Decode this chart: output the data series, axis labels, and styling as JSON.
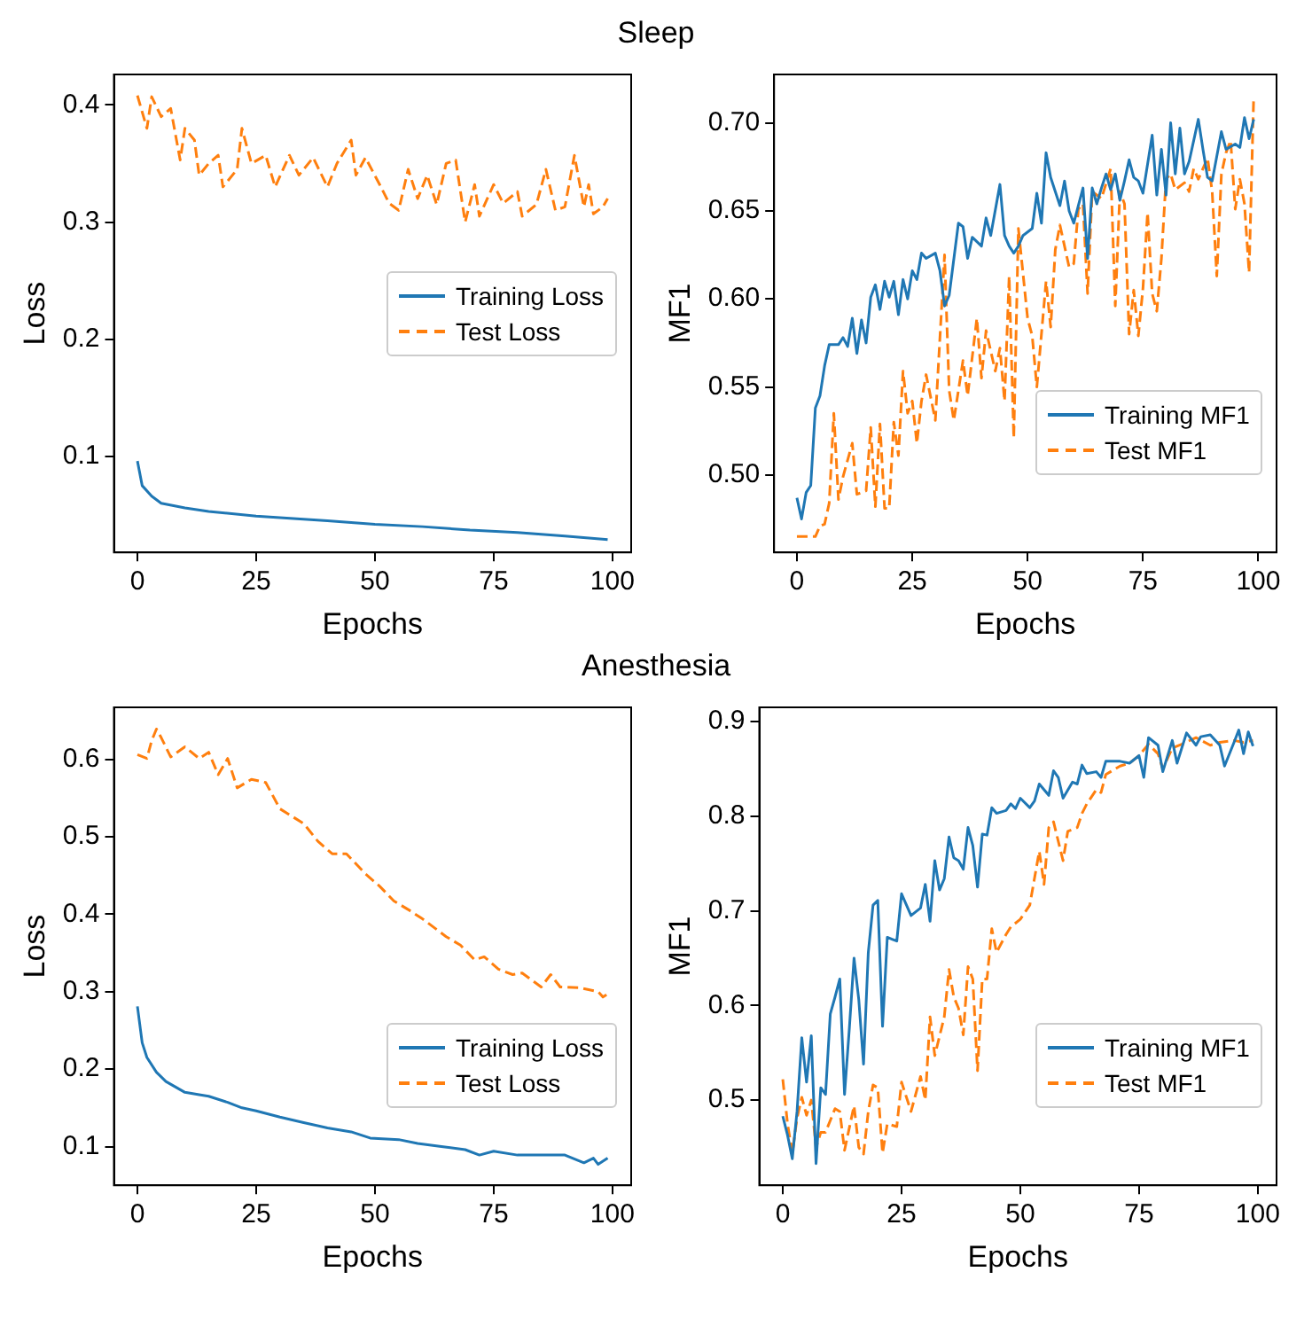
{
  "chart_data": [
    {
      "type": "line",
      "title": "Sleep",
      "xlabel": "Epochs",
      "ylabel": "Loss",
      "xlim": [
        -4.95,
        103.95
      ],
      "xticks": [
        0,
        25,
        50,
        75,
        100
      ],
      "ylim": [
        0.018,
        0.426
      ],
      "yticks": [
        0.1,
        0.2,
        0.3,
        0.4
      ],
      "legend": "center right",
      "grid": false,
      "series": [
        {
          "name": "Training Loss",
          "color": "#1f77b4",
          "line_style": "solid",
          "x": [
            0,
            1,
            3,
            5,
            10,
            15,
            25,
            40,
            50,
            60,
            70,
            80,
            90,
            99
          ],
          "values": [
            0.096,
            0.075,
            0.066,
            0.06,
            0.056,
            0.053,
            0.049,
            0.045,
            0.042,
            0.04,
            0.037,
            0.035,
            0.032,
            0.029
          ]
        },
        {
          "name": "Test Loss",
          "color": "#ff7f0e",
          "line_style": "dashed",
          "x": [
            0,
            2,
            3,
            5,
            7,
            8,
            9,
            10,
            12,
            13,
            15,
            17,
            18,
            21,
            22,
            24,
            27,
            29,
            32,
            34,
            37,
            40,
            42,
            45,
            46,
            48,
            51,
            53,
            55,
            57,
            59,
            61,
            63,
            65,
            67,
            69,
            71,
            72,
            75,
            77,
            80,
            81,
            84,
            86,
            88,
            90,
            92,
            94,
            95,
            96,
            98,
            99
          ],
          "values": [
            0.408,
            0.38,
            0.407,
            0.39,
            0.397,
            0.375,
            0.353,
            0.38,
            0.37,
            0.34,
            0.35,
            0.357,
            0.33,
            0.345,
            0.38,
            0.35,
            0.357,
            0.33,
            0.357,
            0.34,
            0.355,
            0.33,
            0.35,
            0.37,
            0.34,
            0.355,
            0.332,
            0.316,
            0.31,
            0.345,
            0.32,
            0.34,
            0.315,
            0.35,
            0.353,
            0.3,
            0.332,
            0.305,
            0.332,
            0.316,
            0.326,
            0.305,
            0.315,
            0.345,
            0.31,
            0.313,
            0.357,
            0.313,
            0.332,
            0.307,
            0.313,
            0.32
          ]
        }
      ]
    },
    {
      "type": "line",
      "xlabel": "Epochs",
      "ylabel": "MF1",
      "xlim": [
        -4.95,
        103.95
      ],
      "xticks": [
        0,
        25,
        50,
        75,
        100
      ],
      "ylim": [
        0.456,
        0.7275
      ],
      "yticks": [
        {
          "value": 0.5,
          "label": "0.50"
        },
        {
          "value": 0.55,
          "label": "0.55"
        },
        {
          "value": 0.6,
          "label": "0.60"
        },
        {
          "value": 0.65,
          "label": "0.65"
        },
        {
          "value": 0.7,
          "label": "0.70"
        }
      ],
      "legend": "lower right",
      "grid": false,
      "series": [
        {
          "name": "Training MF1",
          "color": "#1f77b4",
          "line_style": "solid",
          "x": [
            0,
            1,
            2,
            3,
            4,
            5,
            6,
            7,
            9,
            10,
            11,
            12,
            13,
            14,
            15,
            16,
            17,
            18,
            19,
            20,
            21,
            22,
            23,
            24,
            25,
            26,
            27,
            28,
            30,
            31,
            32,
            33,
            35,
            36,
            37,
            38,
            40,
            41,
            42,
            44,
            45,
            46,
            47,
            48,
            49,
            51,
            52,
            53,
            54,
            55,
            57,
            58,
            59,
            60,
            61,
            62,
            63,
            64,
            65,
            66,
            67,
            68,
            69,
            70,
            71,
            72,
            73,
            74,
            75,
            77,
            78,
            79,
            80,
            81,
            82,
            83,
            84,
            85,
            87,
            88,
            89,
            90,
            92,
            93,
            95,
            96,
            97,
            98,
            99
          ],
          "values": [
            0.487,
            0.475,
            0.49,
            0.494,
            0.538,
            0.545,
            0.562,
            0.574,
            0.574,
            0.578,
            0.573,
            0.589,
            0.569,
            0.588,
            0.575,
            0.601,
            0.608,
            0.594,
            0.61,
            0.601,
            0.61,
            0.591,
            0.611,
            0.6,
            0.616,
            0.611,
            0.626,
            0.623,
            0.626,
            0.616,
            0.596,
            0.602,
            0.643,
            0.641,
            0.623,
            0.635,
            0.63,
            0.646,
            0.636,
            0.665,
            0.636,
            0.63,
            0.626,
            0.63,
            0.636,
            0.64,
            0.66,
            0.643,
            0.683,
            0.669,
            0.653,
            0.667,
            0.65,
            0.643,
            0.653,
            0.663,
            0.623,
            0.663,
            0.654,
            0.663,
            0.671,
            0.662,
            0.671,
            0.656,
            0.667,
            0.679,
            0.669,
            0.667,
            0.66,
            0.693,
            0.659,
            0.685,
            0.659,
            0.7,
            0.671,
            0.697,
            0.671,
            0.678,
            0.702,
            0.685,
            0.669,
            0.667,
            0.695,
            0.685,
            0.688,
            0.686,
            0.703,
            0.691,
            0.702
          ]
        },
        {
          "name": "Test MF1",
          "color": "#ff7f0e",
          "line_style": "dashed",
          "x": [
            0,
            4,
            5,
            6,
            7,
            8,
            9,
            10,
            12,
            13,
            15,
            16,
            17,
            18,
            19,
            20,
            21,
            22,
            23,
            24,
            25,
            26,
            27,
            28,
            30,
            32,
            33,
            34,
            36,
            37,
            39,
            40,
            41,
            43,
            44,
            45,
            46,
            47,
            48,
            50,
            51,
            52,
            54,
            55,
            56,
            57,
            59,
            60,
            61,
            62,
            63,
            64,
            66,
            68,
            69,
            70,
            71,
            72,
            73,
            74,
            75,
            76,
            77,
            78,
            79,
            80,
            81,
            82,
            84,
            85,
            86,
            87,
            89,
            90,
            91,
            92,
            93,
            94,
            95,
            96,
            97,
            98,
            99
          ],
          "values": [
            0.465,
            0.465,
            0.471,
            0.472,
            0.484,
            0.535,
            0.486,
            0.499,
            0.518,
            0.489,
            0.491,
            0.527,
            0.482,
            0.529,
            0.481,
            0.481,
            0.53,
            0.511,
            0.559,
            0.535,
            0.542,
            0.518,
            0.542,
            0.557,
            0.531,
            0.625,
            0.548,
            0.531,
            0.565,
            0.545,
            0.589,
            0.555,
            0.582,
            0.559,
            0.572,
            0.542,
            0.613,
            0.521,
            0.64,
            0.589,
            0.579,
            0.55,
            0.61,
            0.584,
            0.628,
            0.642,
            0.618,
            0.62,
            0.651,
            0.654,
            0.603,
            0.661,
            0.657,
            0.674,
            0.596,
            0.661,
            0.654,
            0.58,
            0.605,
            0.579,
            0.606,
            0.649,
            0.603,
            0.593,
            0.623,
            0.668,
            0.671,
            0.662,
            0.666,
            0.661,
            0.674,
            0.668,
            0.68,
            0.661,
            0.613,
            0.671,
            0.683,
            0.69,
            0.651,
            0.668,
            0.654,
            0.615,
            0.715
          ]
        }
      ]
    },
    {
      "type": "line",
      "title": "Anesthesia",
      "xlabel": "Epochs",
      "ylabel": "Loss",
      "xlim": [
        -4.95,
        103.95
      ],
      "xticks": [
        0,
        25,
        50,
        75,
        100
      ],
      "ylim": [
        0.05,
        0.667
      ],
      "yticks": [
        0.1,
        0.2,
        0.3,
        0.4,
        0.5,
        0.6
      ],
      "legend": "lower right",
      "grid": false,
      "series": [
        {
          "name": "Training Loss",
          "color": "#1f77b4",
          "line_style": "solid",
          "x": [
            0,
            1,
            2,
            4,
            6,
            10,
            13,
            15,
            19,
            22,
            25,
            30,
            35,
            40,
            45,
            49,
            55,
            59,
            64,
            69,
            72,
            75,
            80,
            86,
            90,
            94,
            96,
            97,
            99
          ],
          "values": [
            0.281,
            0.234,
            0.215,
            0.196,
            0.184,
            0.17,
            0.167,
            0.165,
            0.157,
            0.15,
            0.146,
            0.138,
            0.131,
            0.124,
            0.119,
            0.111,
            0.109,
            0.104,
            0.1,
            0.096,
            0.089,
            0.094,
            0.089,
            0.089,
            0.089,
            0.079,
            0.085,
            0.077,
            0.085
          ]
        },
        {
          "name": "Test Loss",
          "color": "#ff7f0e",
          "line_style": "dashed",
          "x": [
            0,
            2,
            3,
            4,
            5,
            7,
            10,
            13,
            15,
            17,
            19,
            21,
            24,
            27,
            30,
            35,
            38,
            41,
            44,
            48,
            51,
            54,
            57,
            60,
            65,
            68,
            71,
            73,
            76,
            79,
            81,
            85,
            87,
            89,
            93,
            97,
            98,
            99
          ],
          "values": [
            0.606,
            0.601,
            0.624,
            0.639,
            0.628,
            0.603,
            0.616,
            0.601,
            0.609,
            0.58,
            0.601,
            0.563,
            0.574,
            0.57,
            0.536,
            0.517,
            0.494,
            0.478,
            0.478,
            0.452,
            0.436,
            0.417,
            0.406,
            0.394,
            0.371,
            0.36,
            0.341,
            0.345,
            0.329,
            0.322,
            0.324,
            0.306,
            0.322,
            0.306,
            0.305,
            0.3,
            0.293,
            0.297
          ]
        }
      ]
    },
    {
      "type": "line",
      "xlabel": "Epochs",
      "ylabel": "MF1",
      "xlim": [
        -4.95,
        103.95
      ],
      "xticks": [
        0,
        25,
        50,
        75,
        100
      ],
      "ylim": [
        0.41,
        0.915
      ],
      "yticks": [
        0.5,
        0.6,
        0.7,
        0.8,
        0.9
      ],
      "legend": "lower right",
      "grid": false,
      "series": [
        {
          "name": "Training MF1",
          "color": "#1f77b4",
          "line_style": "solid",
          "x": [
            0,
            1,
            2,
            3,
            4,
            5,
            6,
            7,
            8,
            9,
            10,
            11,
            12,
            13,
            14,
            15,
            16,
            17,
            18,
            19,
            20,
            21,
            22,
            23,
            24,
            25,
            27,
            29,
            30,
            31,
            32,
            33,
            34,
            35,
            36,
            37,
            38,
            39,
            40,
            41,
            42,
            43,
            44,
            45,
            47,
            48,
            49,
            50,
            52,
            53,
            54,
            56,
            57,
            58,
            59,
            61,
            62,
            63,
            64,
            66,
            67,
            68,
            71,
            73,
            75,
            76,
            77,
            79,
            80,
            82,
            83,
            85,
            87,
            88,
            90,
            92,
            93,
            95,
            96,
            97,
            98,
            99
          ],
          "values": [
            0.483,
            0.463,
            0.438,
            0.488,
            0.566,
            0.519,
            0.568,
            0.433,
            0.513,
            0.506,
            0.591,
            0.609,
            0.628,
            0.506,
            0.575,
            0.65,
            0.606,
            0.538,
            0.656,
            0.706,
            0.711,
            0.578,
            0.672,
            0.67,
            0.668,
            0.718,
            0.695,
            0.703,
            0.728,
            0.689,
            0.753,
            0.722,
            0.734,
            0.778,
            0.756,
            0.753,
            0.744,
            0.788,
            0.769,
            0.725,
            0.781,
            0.78,
            0.809,
            0.803,
            0.806,
            0.813,
            0.808,
            0.819,
            0.809,
            0.816,
            0.834,
            0.822,
            0.848,
            0.841,
            0.819,
            0.836,
            0.834,
            0.854,
            0.845,
            0.847,
            0.841,
            0.858,
            0.858,
            0.856,
            0.864,
            0.841,
            0.883,
            0.875,
            0.847,
            0.88,
            0.856,
            0.888,
            0.875,
            0.884,
            0.886,
            0.875,
            0.853,
            0.878,
            0.891,
            0.866,
            0.889,
            0.874
          ]
        },
        {
          "name": "Test MF1",
          "color": "#ff7f0e",
          "line_style": "dashed",
          "x": [
            0,
            1,
            2,
            3,
            4,
            5,
            6,
            7,
            8,
            9,
            11,
            12,
            13,
            15,
            16,
            17,
            18,
            19,
            20,
            21,
            22,
            24,
            25,
            27,
            29,
            30,
            31,
            32,
            34,
            35,
            36,
            37,
            38,
            39,
            40,
            41,
            42,
            43,
            44,
            45,
            47,
            48,
            50,
            52,
            54,
            55,
            56,
            57,
            59,
            60,
            62,
            63,
            64,
            66,
            67,
            68,
            69,
            71,
            73,
            75,
            77,
            79,
            80,
            82,
            84,
            87,
            90,
            92,
            95,
            97,
            99
          ],
          "values": [
            0.522,
            0.475,
            0.444,
            0.481,
            0.503,
            0.484,
            0.5,
            0.45,
            0.466,
            0.466,
            0.491,
            0.488,
            0.447,
            0.494,
            0.45,
            0.443,
            0.488,
            0.516,
            0.513,
            0.444,
            0.475,
            0.472,
            0.519,
            0.488,
            0.525,
            0.5,
            0.588,
            0.547,
            0.588,
            0.638,
            0.609,
            0.597,
            0.569,
            0.641,
            0.628,
            0.531,
            0.628,
            0.628,
            0.681,
            0.656,
            0.675,
            0.683,
            0.691,
            0.706,
            0.763,
            0.728,
            0.788,
            0.794,
            0.753,
            0.784,
            0.788,
            0.803,
            0.813,
            0.828,
            0.825,
            0.844,
            0.847,
            0.853,
            0.856,
            0.864,
            0.876,
            0.866,
            0.85,
            0.872,
            0.876,
            0.883,
            0.875,
            0.878,
            0.88,
            0.878,
            0.88
          ]
        }
      ]
    }
  ]
}
